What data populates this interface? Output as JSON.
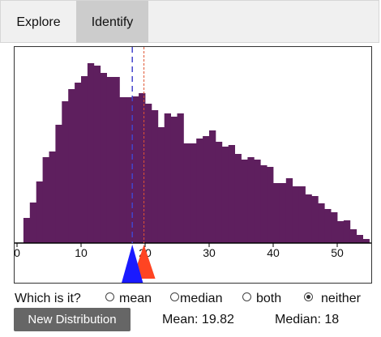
{
  "tabs": [
    {
      "label": "Explore",
      "active": false
    },
    {
      "label": "Identify",
      "active": true
    }
  ],
  "chart_data": {
    "type": "bar",
    "xlim": [
      0,
      55
    ],
    "x_ticks": [
      0,
      10,
      20,
      30,
      40,
      50
    ],
    "x_tick_labels": [
      "0",
      "10",
      "20",
      "30",
      "40",
      "50"
    ],
    "bin_width": 1,
    "bin_start": 1,
    "values": [
      31,
      50,
      76,
      106,
      113,
      146,
      175,
      190,
      198,
      206,
      222,
      219,
      210,
      205,
      205,
      180,
      180,
      181,
      185,
      172,
      164,
      143,
      160,
      156,
      160,
      123,
      123,
      129,
      132,
      139,
      125,
      119,
      121,
      110,
      103,
      106,
      103,
      96,
      94,
      74,
      74,
      80,
      70,
      70,
      60,
      58,
      49,
      42,
      38,
      27,
      28,
      17,
      10,
      5
    ],
    "ylim": [
      0,
      240
    ],
    "bar_color": "#5e1f5e",
    "mean": 19.82,
    "median": 18,
    "markers": [
      {
        "name": "median",
        "value": 18,
        "color": "#1a1aff",
        "line_style": "dashed"
      },
      {
        "name": "mean",
        "value": 19.82,
        "color": "#ff4422",
        "line_style": "dotted"
      }
    ]
  },
  "question": {
    "label": "Which is it?",
    "options": [
      {
        "label": "mean",
        "checked": false
      },
      {
        "label": "median",
        "checked": false
      },
      {
        "label": "both",
        "checked": false
      },
      {
        "label": "neither",
        "checked": true
      }
    ]
  },
  "button": {
    "label": "New Distribution"
  },
  "stats": {
    "mean_label": "Mean: 19.82",
    "median_label": "Median: 18"
  }
}
